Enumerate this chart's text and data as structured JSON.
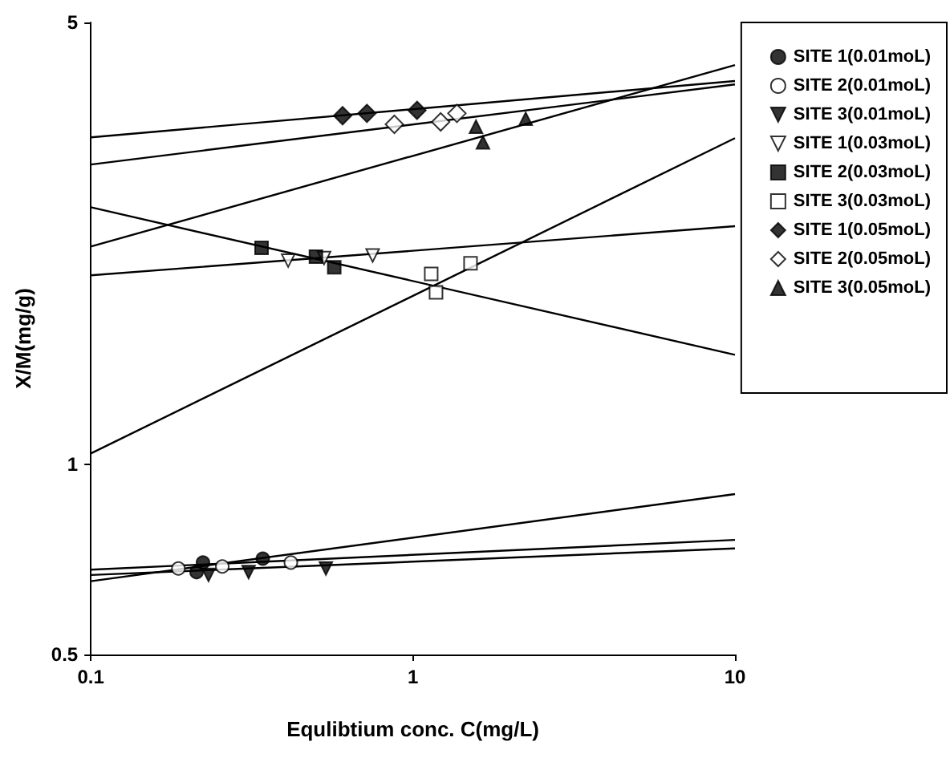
{
  "chart_data": {
    "type": "scatter",
    "xlabel": "Equlibtium conc. C(mg/L)",
    "ylabel": "X/M(mg/g)",
    "log": "xy",
    "xlim": [
      0.1,
      10
    ],
    "xticks": [
      0.1,
      1,
      10
    ],
    "ylim": [
      0.5,
      5
    ],
    "yticks": [
      0.5,
      1,
      5
    ],
    "grid": false,
    "legend": "right",
    "series": [
      {
        "name": "SITE 1(0.01moL)",
        "marker": "circle",
        "color": "#000000",
        "x": [
          0.213,
          0.223,
          0.342
        ],
        "values": [
          0.675,
          0.699,
          0.709
        ]
      },
      {
        "name": "SITE 2(0.01moL)",
        "marker": "circle",
        "color": "#ffffff",
        "x": [
          0.187,
          0.256,
          0.418
        ],
        "values": [
          0.684,
          0.689,
          0.699
        ]
      },
      {
        "name": "SITE 3(0.01moL)",
        "marker": "triangle-down",
        "color": "#000000",
        "x": [
          0.232,
          0.309,
          0.537
        ],
        "values": [
          0.668,
          0.675,
          0.684
        ]
      },
      {
        "name": "SITE 1(0.03moL)",
        "marker": "triangle-down",
        "color": "#ffffff",
        "x": [
          0.41,
          0.53,
          0.75
        ],
        "values": [
          2.1,
          2.12,
          2.14
        ]
      },
      {
        "name": "SITE 2(0.03moL)",
        "marker": "square",
        "color": "#000000",
        "x": [
          0.339,
          0.5,
          0.57
        ],
        "values": [
          2.2,
          2.13,
          2.05
        ]
      },
      {
        "name": "SITE 3(0.03moL)",
        "marker": "square",
        "color": "#ffffff",
        "x": [
          1.14,
          1.18,
          1.51
        ],
        "values": [
          2.0,
          1.87,
          2.08
        ]
      },
      {
        "name": "SITE 1(0.05moL)",
        "marker": "diamond",
        "color": "#000000",
        "x": [
          0.605,
          0.72,
          1.03
        ],
        "values": [
          3.56,
          3.59,
          3.63
        ]
      },
      {
        "name": "SITE 2(0.05moL)",
        "marker": "diamond",
        "color": "#ffffff",
        "x": [
          0.876,
          1.22,
          1.37
        ],
        "values": [
          3.45,
          3.48,
          3.59
        ]
      },
      {
        "name": "SITE 3(0.05moL)",
        "marker": "triangle",
        "color": "#000000",
        "x": [
          1.57,
          1.65,
          2.24
        ],
        "values": [
          3.42,
          3.23,
          3.52
        ]
      },
      {
        "type": "line",
        "marker": "none",
        "color": "#000000",
        "x": [
          0.1,
          10
        ],
        "values": [
          0.653,
          0.897
        ]
      },
      {
        "type": "line",
        "marker": "none",
        "color": "#000000",
        "x": [
          0.1,
          10
        ],
        "values": [
          0.681,
          0.759
        ]
      },
      {
        "type": "line",
        "marker": "none",
        "color": "#000000",
        "x": [
          0.1,
          10
        ],
        "values": [
          0.668,
          0.736
        ]
      },
      {
        "type": "line",
        "marker": "none",
        "color": "#000000",
        "x": [
          0.1,
          10
        ],
        "values": [
          1.99,
          2.38
        ]
      },
      {
        "type": "line",
        "marker": "none",
        "color": "#000000",
        "x": [
          0.1,
          10
        ],
        "values": [
          2.55,
          1.49
        ]
      },
      {
        "type": "line",
        "marker": "none",
        "color": "#000000",
        "x": [
          0.1,
          10
        ],
        "values": [
          1.04,
          3.28
        ]
      },
      {
        "type": "line",
        "marker": "none",
        "color": "#000000",
        "x": [
          0.1,
          10
        ],
        "values": [
          3.29,
          4.04
        ]
      },
      {
        "type": "line",
        "marker": "none",
        "color": "#000000",
        "x": [
          0.1,
          10
        ],
        "values": [
          2.98,
          3.99
        ]
      },
      {
        "type": "line",
        "marker": "none",
        "color": "#000000",
        "x": [
          0.1,
          10
        ],
        "values": [
          2.21,
          4.28
        ]
      }
    ]
  }
}
